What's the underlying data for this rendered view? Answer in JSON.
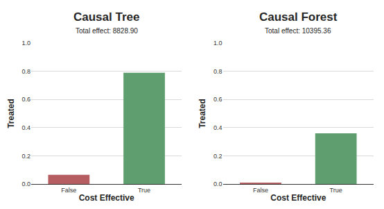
{
  "chart_data": [
    {
      "type": "bar",
      "title": "Causal Tree",
      "subtitle": "Total effect: 8828.90",
      "x_label": "Cost Effective",
      "y_label": "Treated",
      "categories": [
        "False",
        "True"
      ],
      "values": [
        0.065,
        0.79
      ],
      "colors": [
        "#b55d60",
        "#5f9e6e"
      ],
      "ylim": [
        0,
        1
      ],
      "yticks": [
        {
          "value": 0,
          "label": "0.0"
        },
        0.2,
        0.4,
        0.6,
        0.8,
        {
          "value": 1,
          "label": "1.0"
        }
      ],
      "grid": true
    },
    {
      "type": "bar",
      "title": "Causal Forest",
      "subtitle": "Total effect: 10395.36",
      "x_label": "Cost Effective",
      "y_label": "Treated",
      "categories": [
        "False",
        "True"
      ],
      "values": [
        0.005,
        0.36
      ],
      "colors": [
        "#b55d60",
        "#5f9e6e"
      ],
      "ylim": [
        0,
        1
      ],
      "yticks": [
        {
          "value": 0,
          "label": "0.0"
        },
        0.2,
        0.4,
        0.6,
        0.8,
        {
          "value": 1,
          "label": "1.0"
        }
      ],
      "grid": true
    }
  ]
}
